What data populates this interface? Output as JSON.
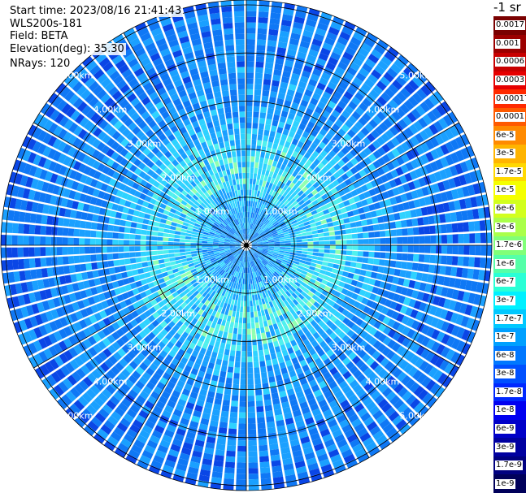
{
  "header": {
    "start_time": "Start time: 2023/08/16 21:41:43",
    "instrument": "WLS200s-181",
    "field": "Field: BETA",
    "elevation": "Elevation(deg): 35.30",
    "nrays": "NRays: 120"
  },
  "colorbar": {
    "title": "-1 sr",
    "labels": [
      "0.0017",
      "0.001",
      "0.0006",
      "0.0003",
      "0.00017",
      "0.0001",
      "6e-5",
      "3e-5",
      "1.7e-5",
      "1e-5",
      "6e-6",
      "3e-6",
      "1.7e-6",
      "1e-6",
      "6e-7",
      "3e-7",
      "1.7e-7",
      "1e-7",
      "6e-8",
      "3e-8",
      "1.7e-8",
      "1e-8",
      "6e-9",
      "3e-9",
      "1.7e-9",
      "1e-9"
    ],
    "colors": [
      "#7a0000",
      "#9c0000",
      "#c80000",
      "#e60000",
      "#ff2a00",
      "#ff5a00",
      "#ff8a00",
      "#ffb400",
      "#ffd800",
      "#f5ff00",
      "#d2ff1e",
      "#aaff4a",
      "#80ff78",
      "#55ffa8",
      "#2affd6",
      "#00f0ff",
      "#00c8ff",
      "#00a0ff",
      "#0078ff",
      "#0050ff",
      "#0028ff",
      "#0000f0",
      "#0000c8",
      "#0000a0",
      "#000080",
      "#00005a"
    ]
  },
  "chart_data": {
    "type": "heatmap",
    "subtype": "polar-ppi",
    "field": "BETA",
    "elevation_deg": 35.3,
    "nrays": 120,
    "range_unit": "km",
    "ring_labels": [
      "1.00km",
      "2.00km",
      "3.00km",
      "4.00km",
      "5.00km"
    ],
    "max_range_km": 5.1,
    "azimuth_sectors": 12,
    "value_range": [
      1e-09,
      0.0017
    ],
    "dominant_values": "mostly 6e-8 to 1e-7 with patches up to 6e-7 at 1-2 km range"
  }
}
